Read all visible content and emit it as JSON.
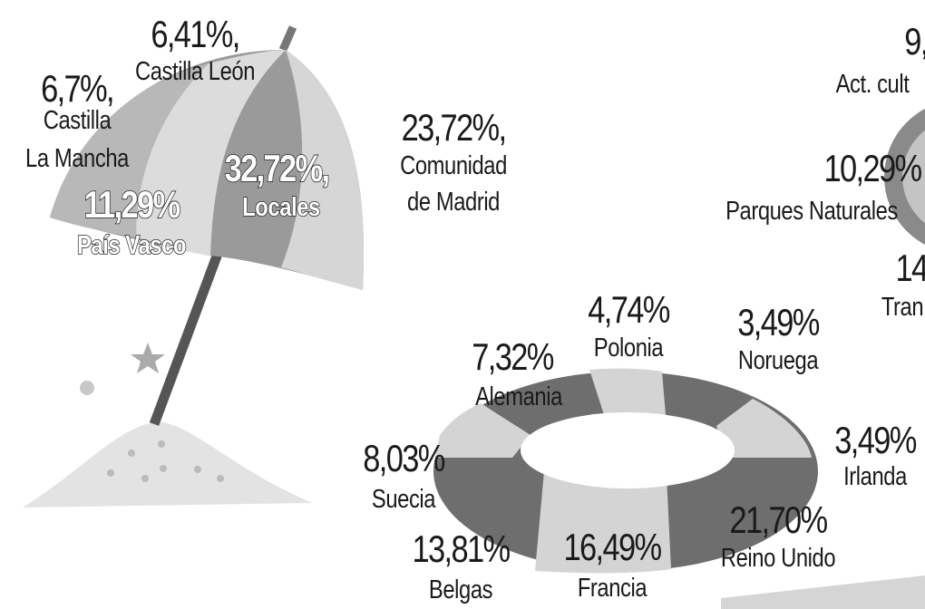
{
  "umbrella": {
    "labels": [
      {
        "value": "6,41%,",
        "name": [
          "Castilla León"
        ]
      },
      {
        "value": "6,7%,",
        "name": [
          "Castilla",
          "La Mancha"
        ]
      },
      {
        "value": "11,29%",
        "name": [
          "País Vasco"
        ]
      },
      {
        "value": "32,72%,",
        "name": [
          "Locales"
        ]
      },
      {
        "value": "23,72%,",
        "name": [
          "Comunidad",
          "de Madrid"
        ]
      }
    ]
  },
  "right": {
    "labels": [
      {
        "value": "9,",
        "name": [
          "Act. cult"
        ]
      },
      {
        "value": "10,29%",
        "name": [
          "Parques Naturales"
        ]
      },
      {
        "value": "14",
        "name": [
          "Tran"
        ]
      }
    ]
  },
  "ring": {
    "labels": [
      {
        "value": "4,74%",
        "name": [
          "Polonia"
        ]
      },
      {
        "value": "3,49%",
        "name": [
          "Noruega"
        ]
      },
      {
        "value": "7,32%",
        "name": [
          "Alemania"
        ]
      },
      {
        "value": "8,03%",
        "name": [
          "Suecia"
        ]
      },
      {
        "value": "3,49%",
        "name": [
          "Irlanda"
        ]
      },
      {
        "value": "21,70%",
        "name": [
          "Reino Unido"
        ]
      },
      {
        "value": "13,81%",
        "name": [
          "Belgas"
        ]
      },
      {
        "value": "16,49%",
        "name": [
          "Francia"
        ]
      }
    ]
  }
}
